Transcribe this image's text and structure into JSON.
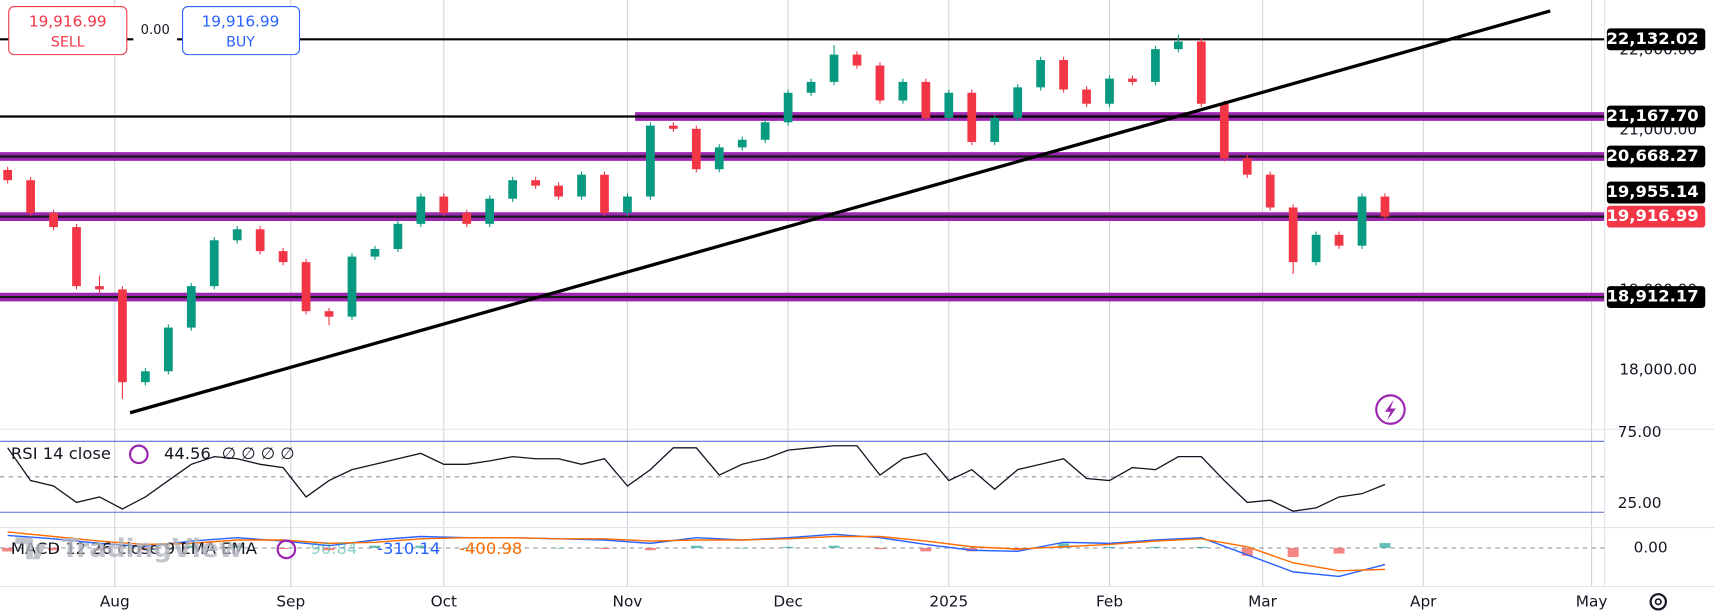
{
  "trade_panel": {
    "sell_price": "19,916.99",
    "sell": "SELL",
    "spread": "0.00",
    "buy_price": "19,916.99",
    "buy": "BUY"
  },
  "watermark": "TradingView",
  "chart_data": [
    {
      "type": "candlestick",
      "up_color": "#089981",
      "down_color": "#f23645",
      "xlim": [
        0,
        210
      ],
      "ylim": [
        17275,
        22623
      ],
      "yticks": [
        {
          "value": 18000,
          "label": "18,000.00"
        },
        {
          "value": 19000,
          "label": "19,000.00"
        },
        {
          "value": 21000,
          "label": "21,000.00"
        },
        {
          "value": 22000,
          "label": "22,000.00"
        }
      ],
      "x": [
        1,
        4,
        7,
        10,
        13,
        16,
        19,
        22,
        25,
        28,
        31,
        34,
        37,
        40,
        43,
        46,
        49,
        52,
        55,
        58,
        61,
        64,
        67,
        70,
        73,
        76,
        79,
        82,
        85,
        88,
        91,
        94,
        97,
        100,
        103,
        106,
        109,
        112,
        115,
        118,
        121,
        124,
        127,
        130,
        133,
        136,
        139,
        142,
        145,
        148,
        151,
        154,
        157,
        160,
        163,
        166,
        169,
        172,
        175,
        178,
        181
      ],
      "open": [
        20500,
        20372,
        19963,
        19786,
        19049,
        19008,
        17849,
        17985,
        18531,
        19049,
        19622,
        19759,
        19486,
        19349,
        18736,
        18667,
        19418,
        19513,
        19827,
        20168,
        19963,
        19827,
        20141,
        20372,
        20304,
        20168,
        20441,
        19963,
        20168,
        21054,
        21014,
        20509,
        20782,
        20877,
        21095,
        21464,
        21600,
        21941,
        21805,
        21368,
        21600,
        21150,
        21464,
        20850,
        21150,
        21532,
        21873,
        21505,
        21327,
        21641,
        21600,
        22009,
        22105,
        21327,
        20645,
        20441,
        20031,
        19349,
        19690,
        19554,
        20168
      ],
      "high": [
        20540,
        20412,
        20003,
        19826,
        19180,
        19048,
        18025,
        18571,
        19089,
        19662,
        19799,
        19799,
        19526,
        19389,
        18776,
        19458,
        19553,
        19867,
        20208,
        20208,
        20003,
        20181,
        20412,
        20412,
        20344,
        20481,
        20481,
        20208,
        21094,
        21094,
        21054,
        20822,
        20917,
        21135,
        21504,
        21640,
        22060,
        21981,
        21845,
        21640,
        21640,
        21504,
        21504,
        21190,
        21572,
        21913,
        21913,
        21545,
        21681,
        21681,
        22049,
        22190,
        22145,
        21367,
        20685,
        20481,
        20071,
        19730,
        19730,
        20208,
        20208
      ],
      "low": [
        20332,
        19923,
        19746,
        19009,
        18968,
        17640,
        17809,
        17945,
        18491,
        19009,
        19582,
        19446,
        19309,
        18696,
        18560,
        18627,
        19378,
        19473,
        19787,
        19923,
        19787,
        19787,
        20101,
        20264,
        20128,
        20128,
        19923,
        19923,
        20128,
        20974,
        20469,
        20469,
        20742,
        20837,
        21055,
        21424,
        21560,
        21765,
        21328,
        21328,
        21110,
        21110,
        20810,
        20810,
        21110,
        21492,
        21465,
        21287,
        21287,
        21560,
        21560,
        21969,
        21287,
        20605,
        20401,
        19991,
        19200,
        19309,
        19514,
        19514,
        19876.99
      ],
      "close": [
        20372,
        19963,
        19786,
        19049,
        19008,
        17849,
        17985,
        18531,
        19049,
        19622,
        19759,
        19486,
        19349,
        18736,
        18667,
        19418,
        19513,
        19827,
        20168,
        19963,
        19827,
        20141,
        20372,
        20304,
        20168,
        20441,
        19963,
        20168,
        21054,
        21014,
        20509,
        20782,
        20877,
        21095,
        21464,
        21600,
        21941,
        21805,
        21368,
        21600,
        21150,
        21464,
        20850,
        21150,
        21532,
        21873,
        21505,
        21327,
        21641,
        21600,
        22009,
        22105,
        21327,
        20645,
        20441,
        20031,
        19349,
        19690,
        19554,
        20168,
        19916.99
      ],
      "trendline": {
        "color": "#000000",
        "x": [
          17,
          202.6
        ],
        "y": [
          17467,
          22487
        ]
      },
      "levels": [
        {
          "value": 18912.17,
          "label": "18,912.17",
          "style": "purple-band",
          "badge": "black"
        },
        {
          "value": 19916.99,
          "label": "19,916.99",
          "style": "purple-band",
          "badge": "red"
        },
        {
          "value": 19955.14,
          "label": "19,955.14",
          "style": "none",
          "badge": "black"
        },
        {
          "value": 20668.27,
          "label": "20,668.27",
          "style": "purple-band",
          "badge": "black"
        },
        {
          "value": 21167.7,
          "label": "21,167.70",
          "style": "black-line",
          "band_from_x": 83,
          "badge": "black"
        },
        {
          "value": 22132.02,
          "label": "22,132.02",
          "style": "black-line",
          "badge": "black"
        }
      ]
    },
    {
      "type": "line",
      "legend": "RSI 14 close",
      "legend_extra": "∅ ∅ ∅ ∅",
      "color": "#131722",
      "band_color": "#5b6bd6",
      "xlim": [
        0,
        210
      ],
      "ylim": [
        15,
        81.2
      ],
      "yticks": [
        {
          "value": 75,
          "label": "75.00"
        },
        {
          "value": 25,
          "label": "25.00"
        }
      ],
      "midline": 50,
      "x": [
        1,
        4,
        7,
        10,
        13,
        16,
        19,
        22,
        25,
        28,
        31,
        34,
        37,
        40,
        43,
        46,
        49,
        52,
        55,
        58,
        61,
        64,
        67,
        70,
        73,
        76,
        79,
        82,
        85,
        88,
        91,
        94,
        97,
        100,
        103,
        106,
        109,
        112,
        115,
        118,
        121,
        124,
        127,
        130,
        133,
        136,
        139,
        142,
        145,
        148,
        151,
        154,
        157,
        160,
        163,
        166,
        169,
        172,
        175,
        178,
        181
      ],
      "values": [
        70.4,
        47.3,
        43.5,
        31.9,
        35.8,
        27.3,
        35.8,
        47.3,
        58.8,
        64.2,
        62.7,
        58.8,
        56.5,
        35.8,
        47.3,
        55.0,
        58.8,
        62.7,
        66.5,
        58.8,
        58.8,
        61.2,
        64.2,
        62.7,
        62.7,
        58.8,
        62.7,
        43.5,
        55.0,
        70.4,
        70.4,
        51.2,
        58.8,
        62.7,
        68.8,
        70.4,
        71.9,
        71.9,
        51.2,
        62.7,
        66.5,
        47.3,
        55.0,
        41.2,
        55.0,
        58.8,
        62.7,
        48.8,
        47.3,
        56.5,
        55.0,
        64.2,
        64.2,
        47.3,
        31.9,
        33.5,
        25.8,
        28.1,
        35.8,
        38.1,
        44.56
      ]
    },
    {
      "type": "macd",
      "legend": "MACD 12 26 close 9 EMA EMA",
      "macd_color": "#2962ff",
      "signal_color": "#ff6d00",
      "hist_up_color": "#26a69a",
      "hist_down_color": "#ef5350",
      "xlim": [
        0,
        210
      ],
      "ylim": [
        -720,
        340
      ],
      "grid": true,
      "yticks": [
        {
          "value": 0,
          "label": "0.00"
        }
      ],
      "xticks": [
        {
          "value": 15,
          "label": "Aug"
        },
        {
          "value": 38,
          "label": "Sep"
        },
        {
          "value": 58,
          "label": "Oct"
        },
        {
          "value": 82,
          "label": "Nov"
        },
        {
          "value": 103,
          "label": "Dec"
        },
        {
          "value": 124,
          "label": "2025"
        },
        {
          "value": 145,
          "label": "Feb"
        },
        {
          "value": 165,
          "label": "Mar"
        },
        {
          "value": 186,
          "label": "Apr"
        },
        {
          "value": 208,
          "label": "May"
        }
      ],
      "x": [
        1,
        7,
        13,
        19,
        25,
        31,
        37,
        43,
        49,
        55,
        61,
        67,
        73,
        79,
        85,
        91,
        97,
        103,
        109,
        115,
        121,
        127,
        133,
        139,
        145,
        151,
        157,
        163,
        169,
        175,
        181
      ],
      "histogram": [
        -66,
        -43,
        -43,
        -43,
        43,
        42,
        -21,
        -42,
        43,
        43,
        0,
        0,
        0,
        -21,
        -43,
        42,
        0,
        21,
        42,
        -22,
        -64,
        -64,
        -43,
        85,
        21,
        21,
        21,
        -149,
        -170,
        -106,
        90.84
      ],
      "macd": [
        234,
        170,
        85,
        21,
        128,
        191,
        128,
        43,
        149,
        213,
        191,
        191,
        170,
        149,
        85,
        191,
        149,
        191,
        255,
        191,
        64,
        -43,
        -64,
        106,
        85,
        149,
        191,
        -128,
        -447,
        -532,
        -310.14
      ],
      "signal": [
        300,
        213,
        128,
        64,
        85,
        149,
        149,
        85,
        106,
        170,
        191,
        191,
        170,
        170,
        128,
        149,
        149,
        170,
        213,
        213,
        128,
        21,
        -21,
        21,
        64,
        128,
        170,
        21,
        -277,
        -426,
        -400.98
      ]
    }
  ]
}
